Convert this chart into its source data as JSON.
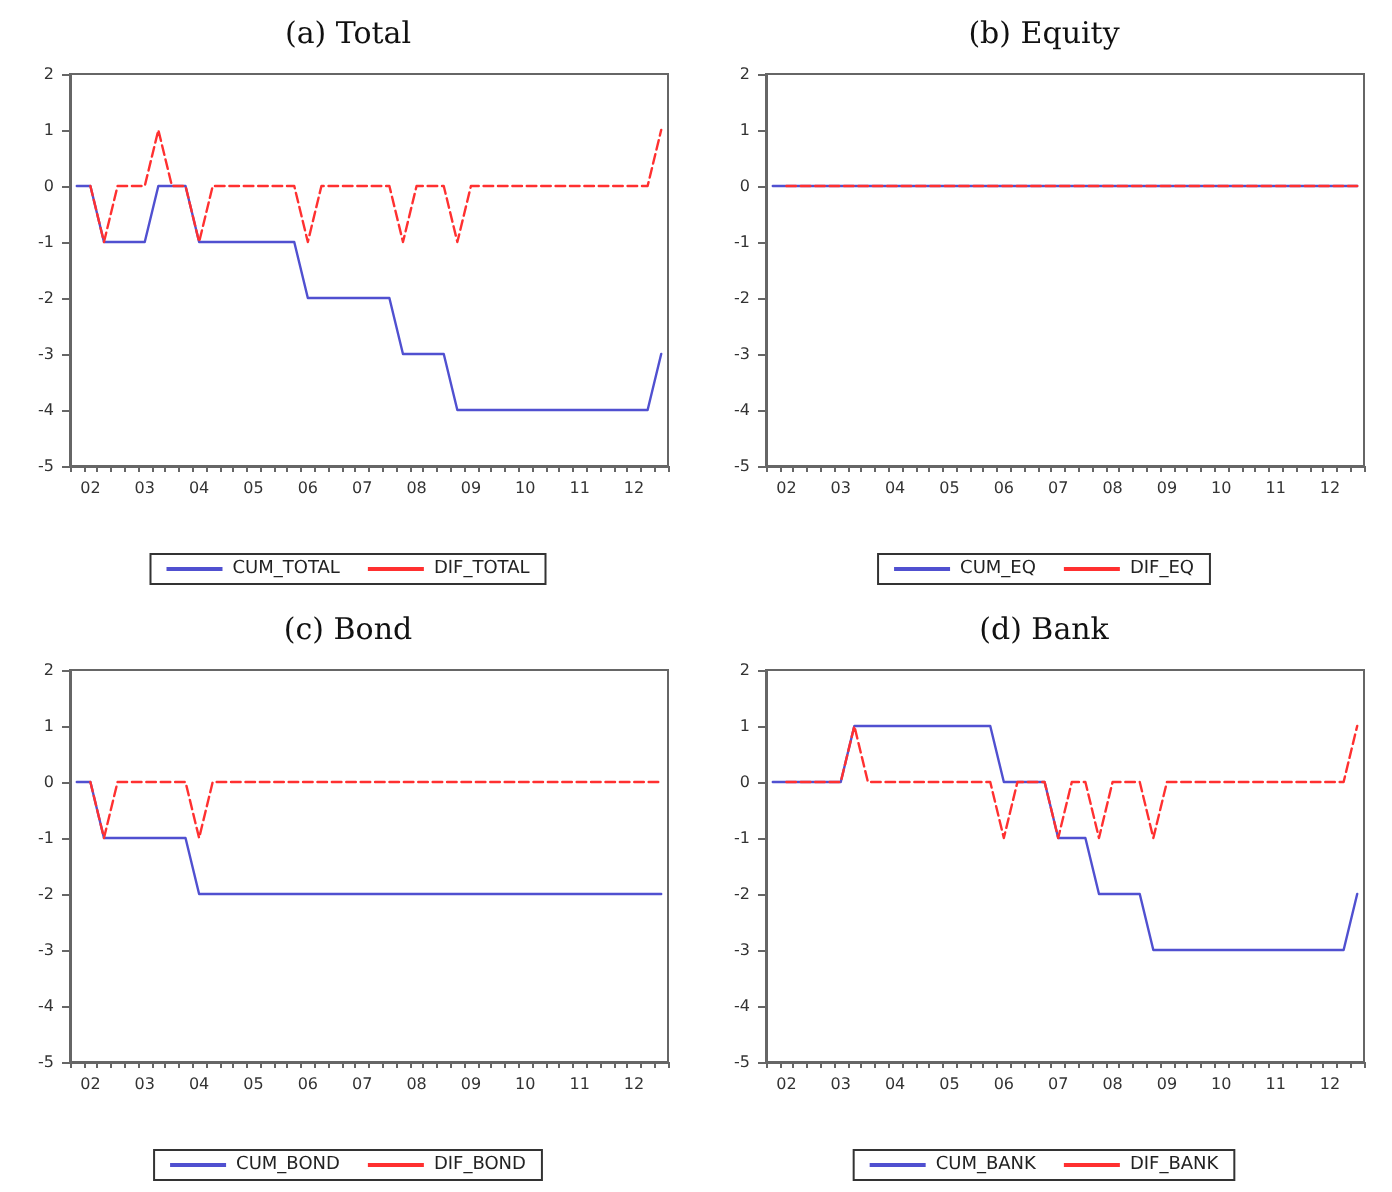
{
  "chart_data": [
    {
      "type": "line",
      "title": "(a) Total",
      "legend": "bottom",
      "grid": false,
      "marker": "none",
      "categories": [
        null,
        "02",
        null,
        null,
        null,
        "03",
        null,
        null,
        null,
        "04",
        null,
        null,
        null,
        "05",
        null,
        null,
        null,
        "06",
        null,
        null,
        null,
        "07",
        null,
        null,
        null,
        "08",
        null,
        null,
        null,
        "09",
        null,
        null,
        null,
        "10",
        null,
        null,
        null,
        "11",
        null,
        null,
        null,
        "12",
        null,
        null
      ],
      "ylim": [
        -5,
        2
      ],
      "yticks": [
        -5,
        -4,
        -3,
        -2,
        -1,
        0,
        1,
        2
      ],
      "series": [
        {
          "name": "CUM_TOTAL",
          "color": "#5050d0",
          "line_style": "solid",
          "values": [
            0,
            0,
            -1,
            -1,
            -1,
            -1,
            0,
            0,
            0,
            -1,
            -1,
            -1,
            -1,
            -1,
            -1,
            -1,
            -1,
            -2,
            -2,
            -2,
            -2,
            -2,
            -2,
            -2,
            -3,
            -3,
            -3,
            -3,
            -4,
            -4,
            -4,
            -4,
            -4,
            -4,
            -4,
            -4,
            -4,
            -4,
            -4,
            -4,
            -4,
            -4,
            -4,
            -3
          ]
        },
        {
          "name": "DIF_TOTAL",
          "color": "#ff3030",
          "line_style": "dashed",
          "values": [
            null,
            0,
            -1,
            0,
            0,
            0,
            1,
            0,
            0,
            -1,
            0,
            0,
            0,
            0,
            0,
            0,
            0,
            -1,
            0,
            0,
            0,
            0,
            0,
            0,
            -1,
            0,
            0,
            0,
            -1,
            0,
            0,
            0,
            0,
            0,
            0,
            0,
            0,
            0,
            0,
            0,
            0,
            0,
            0,
            1
          ]
        }
      ]
    },
    {
      "type": "line",
      "title": "(b) Equity",
      "legend": "bottom",
      "grid": false,
      "marker": "none",
      "categories": [
        null,
        "02",
        null,
        null,
        null,
        "03",
        null,
        null,
        null,
        "04",
        null,
        null,
        null,
        "05",
        null,
        null,
        null,
        "06",
        null,
        null,
        null,
        "07",
        null,
        null,
        null,
        "08",
        null,
        null,
        null,
        "09",
        null,
        null,
        null,
        "10",
        null,
        null,
        null,
        "11",
        null,
        null,
        null,
        "12",
        null,
        null
      ],
      "ylim": [
        -5,
        2
      ],
      "yticks": [
        -5,
        -4,
        -3,
        -2,
        -1,
        0,
        1,
        2
      ],
      "series": [
        {
          "name": "CUM_EQ",
          "color": "#5050d0",
          "line_style": "solid",
          "values": [
            0,
            0,
            0,
            0,
            0,
            0,
            0,
            0,
            0,
            0,
            0,
            0,
            0,
            0,
            0,
            0,
            0,
            0,
            0,
            0,
            0,
            0,
            0,
            0,
            0,
            0,
            0,
            0,
            0,
            0,
            0,
            0,
            0,
            0,
            0,
            0,
            0,
            0,
            0,
            0,
            0,
            0,
            0,
            0
          ]
        },
        {
          "name": "DIF_EQ",
          "color": "#ff3030",
          "line_style": "dashed",
          "values": [
            null,
            0,
            0,
            0,
            0,
            0,
            0,
            0,
            0,
            0,
            0,
            0,
            0,
            0,
            0,
            0,
            0,
            0,
            0,
            0,
            0,
            0,
            0,
            0,
            0,
            0,
            0,
            0,
            0,
            0,
            0,
            0,
            0,
            0,
            0,
            0,
            0,
            0,
            0,
            0,
            0,
            0,
            0,
            0
          ]
        }
      ]
    },
    {
      "type": "line",
      "title": "(c) Bond",
      "legend": "bottom",
      "grid": false,
      "marker": "none",
      "categories": [
        null,
        "02",
        null,
        null,
        null,
        "03",
        null,
        null,
        null,
        "04",
        null,
        null,
        null,
        "05",
        null,
        null,
        null,
        "06",
        null,
        null,
        null,
        "07",
        null,
        null,
        null,
        "08",
        null,
        null,
        null,
        "09",
        null,
        null,
        null,
        "10",
        null,
        null,
        null,
        "11",
        null,
        null,
        null,
        "12",
        null,
        null
      ],
      "ylim": [
        -5,
        2
      ],
      "yticks": [
        -5,
        -4,
        -3,
        -2,
        -1,
        0,
        1,
        2
      ],
      "series": [
        {
          "name": "CUM_BOND",
          "color": "#5050d0",
          "line_style": "solid",
          "values": [
            0,
            0,
            -1,
            -1,
            -1,
            -1,
            -1,
            -1,
            -1,
            -2,
            -2,
            -2,
            -2,
            -2,
            -2,
            -2,
            -2,
            -2,
            -2,
            -2,
            -2,
            -2,
            -2,
            -2,
            -2,
            -2,
            -2,
            -2,
            -2,
            -2,
            -2,
            -2,
            -2,
            -2,
            -2,
            -2,
            -2,
            -2,
            -2,
            -2,
            -2,
            -2,
            -2,
            -2
          ]
        },
        {
          "name": "DIF_BOND",
          "color": "#ff3030",
          "line_style": "dashed",
          "values": [
            null,
            0,
            -1,
            0,
            0,
            0,
            0,
            0,
            0,
            -1,
            0,
            0,
            0,
            0,
            0,
            0,
            0,
            0,
            0,
            0,
            0,
            0,
            0,
            0,
            0,
            0,
            0,
            0,
            0,
            0,
            0,
            0,
            0,
            0,
            0,
            0,
            0,
            0,
            0,
            0,
            0,
            0,
            0,
            0
          ]
        }
      ]
    },
    {
      "type": "line",
      "title": "(d) Bank",
      "legend": "bottom",
      "grid": false,
      "marker": "none",
      "categories": [
        null,
        "02",
        null,
        null,
        null,
        "03",
        null,
        null,
        null,
        "04",
        null,
        null,
        null,
        "05",
        null,
        null,
        null,
        "06",
        null,
        null,
        null,
        "07",
        null,
        null,
        null,
        "08",
        null,
        null,
        null,
        "09",
        null,
        null,
        null,
        "10",
        null,
        null,
        null,
        "11",
        null,
        null,
        null,
        "12",
        null,
        null
      ],
      "ylim": [
        -5,
        2
      ],
      "yticks": [
        -5,
        -4,
        -3,
        -2,
        -1,
        0,
        1,
        2
      ],
      "series": [
        {
          "name": "CUM_BANK",
          "color": "#5050d0",
          "line_style": "solid",
          "values": [
            0,
            0,
            0,
            0,
            0,
            0,
            1,
            1,
            1,
            1,
            1,
            1,
            1,
            1,
            1,
            1,
            1,
            0,
            0,
            0,
            0,
            -1,
            -1,
            -1,
            -2,
            -2,
            -2,
            -2,
            -3,
            -3,
            -3,
            -3,
            -3,
            -3,
            -3,
            -3,
            -3,
            -3,
            -3,
            -3,
            -3,
            -3,
            -3,
            -2
          ]
        },
        {
          "name": "DIF_BANK",
          "color": "#ff3030",
          "line_style": "dashed",
          "values": [
            null,
            0,
            0,
            0,
            0,
            0,
            1,
            0,
            0,
            0,
            0,
            0,
            0,
            0,
            0,
            0,
            0,
            -1,
            0,
            0,
            0,
            -1,
            0,
            0,
            -1,
            0,
            0,
            0,
            -1,
            0,
            0,
            0,
            0,
            0,
            0,
            0,
            0,
            0,
            0,
            0,
            0,
            0,
            0,
            1
          ]
        }
      ]
    }
  ]
}
